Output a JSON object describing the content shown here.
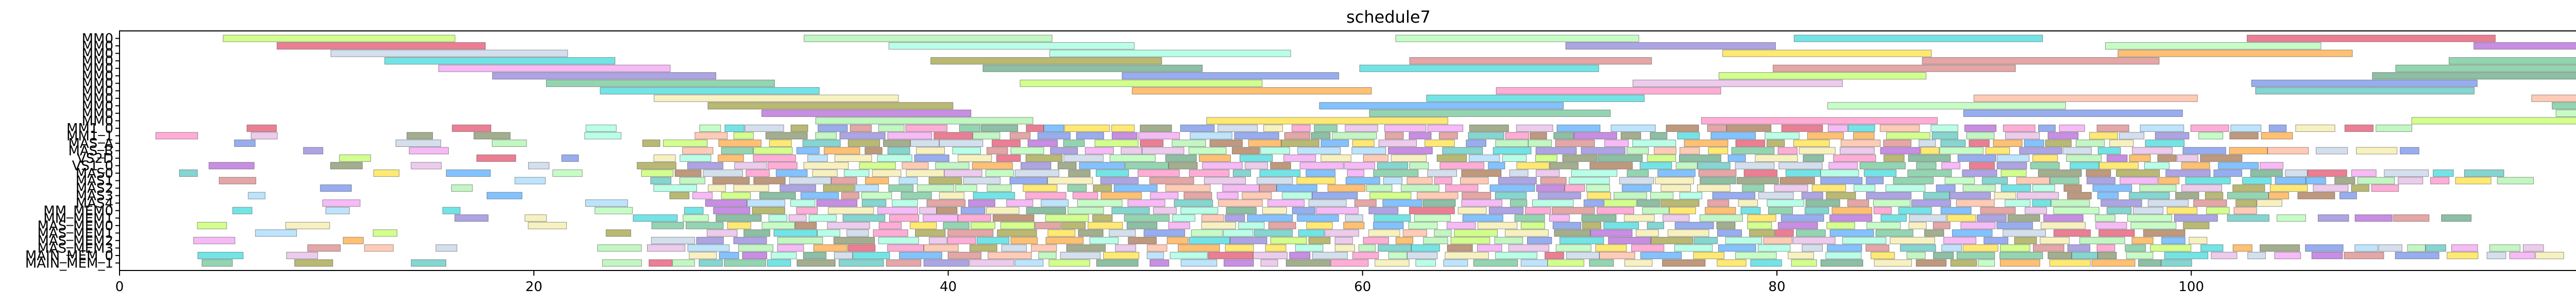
{
  "chart_data": {
    "type": "gantt",
    "title": "schedule7",
    "xlim": [
      0,
      122.5
    ],
    "x_ticks": [
      0,
      20,
      40,
      60,
      80,
      100,
      120
    ],
    "rows": [
      "MM0",
      "MM0",
      "MM0",
      "MM0",
      "MM0",
      "MM0",
      "MM0",
      "MM0",
      "MM0",
      "MM0",
      "MM0",
      "MM0",
      "MM1_0",
      "MM1_1",
      "MAS_A",
      "MAS_B",
      "VS2D",
      "VS1_0",
      "MAS0",
      "MAS1",
      "MAS2",
      "MAS3",
      "MAS4",
      "MM_MEM0",
      "MM_MEM1",
      "MAS_MEM0",
      "MAS_MEM1",
      "MAS_MEM2",
      "MAS_MEM3",
      "MAIN_MEM_0",
      "MAIN_MEM_1"
    ],
    "row_labels_note": "visible row tick labels, top to bottom",
    "grid": false,
    "legend": "none"
  }
}
